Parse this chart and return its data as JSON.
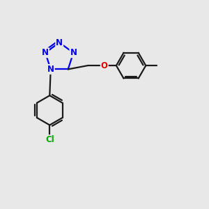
{
  "background_color": "#e8e8e8",
  "bond_color": "#1a1a1a",
  "bond_width": 1.6,
  "atom_colors": {
    "N": "#0000ee",
    "O": "#dd0000",
    "Cl": "#00aa00",
    "C": "#1a1a1a"
  },
  "font_size_atom": 8.5,
  "xlim": [
    0,
    10
  ],
  "ylim": [
    0,
    10
  ]
}
